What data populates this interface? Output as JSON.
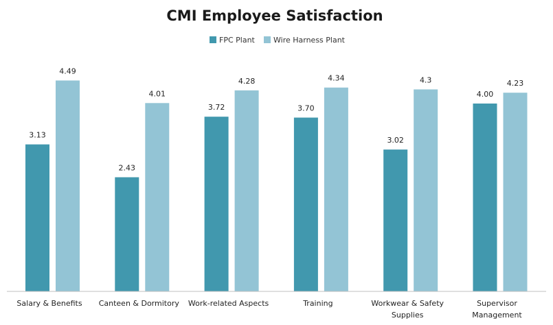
{
  "chart_data": {
    "type": "bar",
    "title": "CMI Employee Satisfaction",
    "xlabel": "",
    "ylabel": "",
    "ylim": [
      0,
      5
    ],
    "grid": false,
    "legend_position": "top-center",
    "categories": [
      [
        "Salary & Benefits"
      ],
      [
        "Canteen & Dormitory"
      ],
      [
        "Work-related Aspects"
      ],
      [
        "Training"
      ],
      [
        "Workwear & Safety",
        "Supplies"
      ],
      [
        "Supervisor",
        "Management"
      ]
    ],
    "series": [
      {
        "name": "FPC Plant",
        "color": "#4198ae",
        "values": [
          3.13,
          2.43,
          3.72,
          3.7,
          3.02,
          4.0
        ],
        "labels": [
          "3.13",
          "2.43",
          "3.72",
          "3.70",
          "3.02",
          "4.00"
        ]
      },
      {
        "name": "Wire Harness Plant",
        "color": "#93c4d5",
        "values": [
          4.49,
          4.01,
          4.28,
          4.34,
          4.3,
          4.23
        ],
        "labels": [
          "4.49",
          "4.01",
          "4.28",
          "4.34",
          "4.3",
          "4.23"
        ]
      }
    ]
  }
}
